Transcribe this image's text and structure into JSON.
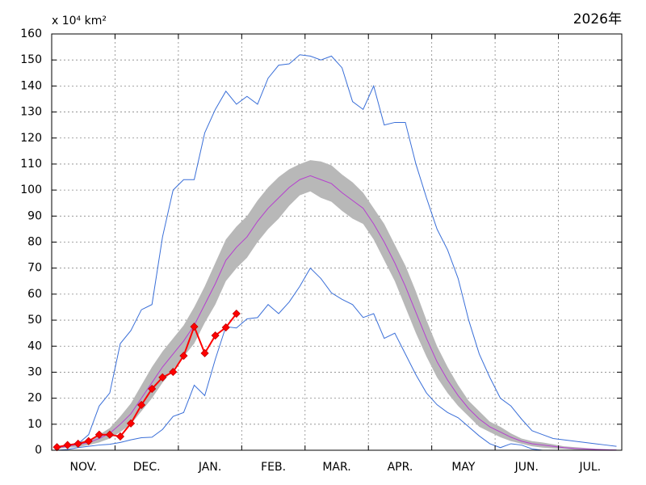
{
  "chart_data": {
    "type": "line",
    "title": "2026年",
    "y_label": "x 10⁴ km²",
    "x": [
      0.5,
      1.5,
      2.5,
      3.5,
      4.5,
      5.5,
      6.5,
      7.5,
      8.5,
      9.5,
      10.5,
      11.5,
      12.5,
      13.5,
      14.5,
      15.5,
      16.5,
      17.5,
      18.5,
      19.5,
      20.5,
      21.5,
      22.5,
      23.5,
      24.5,
      25.5,
      26.5,
      27.5,
      28.5,
      29.5,
      30.5,
      31.5,
      32.5,
      33.5,
      34.5,
      35.5,
      36.5,
      37.5,
      38.5,
      39.5,
      40.5,
      41.5,
      42.5,
      43.5,
      44.5,
      45.5,
      46.5,
      47.5,
      48.5,
      49.5,
      50.5,
      51.5,
      52.5,
      53.5
    ],
    "xlim": [
      0,
      54
    ],
    "xticks": [
      {
        "value": 3,
        "label": "NOV."
      },
      {
        "value": 9,
        "label": "DEC."
      },
      {
        "value": 15,
        "label": "JAN."
      },
      {
        "value": 21,
        "label": "FEB."
      },
      {
        "value": 27,
        "label": "MAR."
      },
      {
        "value": 33,
        "label": "APR."
      },
      {
        "value": 39,
        "label": "MAY"
      },
      {
        "value": 45,
        "label": "JUN."
      },
      {
        "value": 51,
        "label": "JUL."
      }
    ],
    "xgrid": [
      6,
      12,
      18,
      24,
      30,
      36,
      42,
      48
    ],
    "ylim": [
      0,
      160
    ],
    "yticks": [
      0,
      10,
      20,
      30,
      40,
      50,
      60,
      70,
      80,
      90,
      100,
      110,
      120,
      130,
      140,
      150,
      160
    ],
    "grid": true,
    "band": {
      "color": "#b8b8b8",
      "upper": [
        1.5,
        2,
        3.2,
        4,
        6,
        8.5,
        13,
        18,
        25,
        32,
        38,
        43,
        48,
        55,
        63,
        72,
        81,
        86,
        90,
        96,
        101,
        105,
        108,
        110,
        111.5,
        111,
        109.5,
        106,
        103,
        99,
        93,
        87,
        79,
        71,
        61,
        50,
        40,
        32,
        25,
        19,
        15,
        11,
        9,
        6.5,
        4.5,
        3.5,
        3,
        2.3,
        1.5,
        1.2,
        0.9,
        0.6,
        0.4,
        0.2
      ],
      "lower": [
        0.5,
        1,
        1.2,
        2,
        3,
        4.5,
        7,
        10,
        15,
        20,
        26,
        31,
        36,
        41,
        49,
        56,
        65,
        70,
        74,
        80,
        85,
        89,
        94,
        98,
        99.5,
        97,
        95.5,
        92,
        89,
        87,
        81,
        73,
        65,
        55,
        45,
        36,
        28,
        22,
        17,
        13,
        9,
        7,
        5,
        3.5,
        2.5,
        1.5,
        1,
        0.7,
        0.5,
        0.2,
        0.1,
        0,
        0,
        0
      ]
    },
    "series": [
      {
        "color": "#3a6fd8",
        "values": [
          1,
          1.5,
          2.5,
          6,
          17,
          22,
          41,
          46,
          54,
          56,
          82,
          100,
          104,
          104,
          122,
          131,
          138,
          133,
          136,
          133,
          143,
          148,
          148.5,
          152,
          151.5,
          150,
          151.5,
          147,
          134,
          131,
          140,
          125,
          126,
          126,
          110,
          97,
          85,
          77,
          66,
          50,
          37,
          28,
          20,
          17,
          12,
          7.5,
          6,
          4.5,
          4,
          3.5,
          3,
          2.5,
          2,
          1.5
        ]
      },
      {
        "color": "#3a6fd8",
        "values": [
          0,
          0.3,
          1,
          1.5,
          2,
          2.3,
          3,
          4,
          4.8,
          5,
          8,
          13,
          14.5,
          25,
          21,
          35,
          47.5,
          47,
          50.5,
          51,
          56,
          52.5,
          57,
          63,
          70,
          66,
          60.5,
          58,
          56,
          51,
          52.5,
          43,
          45,
          37,
          29,
          22,
          17.5,
          14.5,
          12.5,
          9,
          5.5,
          2.5,
          1,
          2.5,
          2,
          0.5,
          0,
          0,
          0,
          0,
          0,
          0,
          0,
          0
        ]
      },
      {
        "color": "#b63fcf",
        "values": [
          1,
          1.5,
          2.2,
          3,
          4.5,
          6.5,
          10,
          14,
          20,
          26,
          32,
          37,
          42,
          48,
          56,
          64,
          73,
          78,
          82,
          88,
          93,
          97,
          101,
          104,
          105.5,
          104,
          102.5,
          99,
          96,
          93,
          87,
          80,
          72,
          63,
          53,
          43,
          34,
          27,
          21,
          16,
          12,
          9,
          7,
          5,
          3.5,
          2.5,
          2,
          1.5,
          1,
          0.7,
          0.5,
          0.3,
          0.2,
          0.1
        ]
      },
      {
        "color": "#ff0000",
        "marker": "diamond",
        "values": [
          1.2,
          2,
          2.5,
          3.5,
          6,
          6,
          5.3,
          10.3,
          17.4,
          23.6,
          28,
          30.1,
          36.3,
          47.5,
          37.3,
          44.1,
          47.2,
          52.5,
          null,
          null,
          null,
          null,
          null,
          null,
          null,
          null,
          null,
          null,
          null,
          null,
          null,
          null,
          null,
          null,
          null,
          null,
          null,
          null,
          null,
          null,
          null,
          null,
          null,
          null,
          null,
          null,
          null,
          null,
          null,
          null,
          null,
          null,
          null,
          null
        ]
      }
    ]
  }
}
